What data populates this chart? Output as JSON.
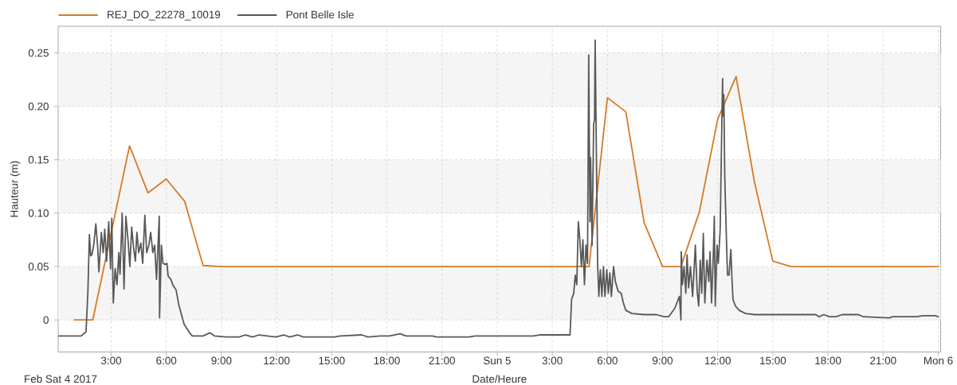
{
  "chart_data": {
    "type": "line",
    "xlabel": "Date/Heure",
    "ylabel": "Hauteur (m)",
    "annotations": [
      "Feb Sat 4 2017"
    ],
    "xlim": [
      "2017-02-04T00:07",
      "2017-02-06T00:08"
    ],
    "xticks": [
      {
        "value": "2017-02-04T03:00",
        "label": "3:00"
      },
      {
        "value": "2017-02-04T06:00",
        "label": "6:00"
      },
      {
        "value": "2017-02-04T09:00",
        "label": "9:00"
      },
      {
        "value": "2017-02-04T12:00",
        "label": "12:00"
      },
      {
        "value": "2017-02-04T15:00",
        "label": "15:00"
      },
      {
        "value": "2017-02-04T18:00",
        "label": "18:00"
      },
      {
        "value": "2017-02-04T21:00",
        "label": "21:00"
      },
      {
        "value": "2017-02-05T00:00",
        "label": "Sun 5"
      },
      {
        "value": "2017-02-05T03:00",
        "label": "3:00"
      },
      {
        "value": "2017-02-05T06:00",
        "label": "6:00"
      },
      {
        "value": "2017-02-05T09:00",
        "label": "9:00"
      },
      {
        "value": "2017-02-05T12:00",
        "label": "12:00"
      },
      {
        "value": "2017-02-05T15:00",
        "label": "15:00"
      },
      {
        "value": "2017-02-05T18:00",
        "label": "18:00"
      },
      {
        "value": "2017-02-05T21:00",
        "label": "21:00"
      },
      {
        "value": "2017-02-06T00:00",
        "label": "Mon 6"
      }
    ],
    "ylim": [
      -0.03,
      0.275
    ],
    "yticks": [
      0,
      0.05,
      {
        "value": 0.1,
        "label": "0.10"
      },
      0.15,
      {
        "value": 0.2,
        "label": "0.20"
      },
      0.25
    ],
    "grid": true,
    "legend": "top left",
    "line_style": "solid",
    "bands": [
      {
        "axis": "y",
        "from": 0,
        "to": 0.05,
        "color": "#f5f5f5"
      },
      {
        "axis": "y",
        "from": 0.1,
        "to": 0.15,
        "color": "#f5f5f5"
      },
      {
        "axis": "y",
        "from": 0.2,
        "to": 0.25,
        "color": "#f5f5f5"
      }
    ],
    "series": [
      {
        "name": "REJ_DO_22278_10019",
        "color": "#d67b25",
        "x": [
          "2017-02-04T01:00",
          "2017-02-04T02:00",
          "2017-02-04T04:00",
          "2017-02-04T05:00",
          "2017-02-04T06:00",
          "2017-02-04T07:00",
          "2017-02-04T08:00",
          "2017-02-04T09:00",
          "2017-02-05T05:00",
          "2017-02-05T06:00",
          "2017-02-05T07:00",
          "2017-02-05T08:00",
          "2017-02-05T09:00",
          "2017-02-05T10:00",
          "2017-02-05T11:00",
          "2017-02-05T12:00",
          "2017-02-05T13:00",
          "2017-02-05T14:00",
          "2017-02-05T15:00",
          "2017-02-05T16:00",
          "2017-02-06T00:00"
        ],
        "values": [
          0,
          0,
          0.163,
          0.119,
          0.132,
          0.111,
          0.051,
          0.05,
          0.05,
          0.208,
          0.195,
          0.091,
          0.05,
          0.05,
          0.101,
          0.188,
          0.228,
          0.129,
          0.055,
          0.05,
          0.05
        ]
      },
      {
        "name": "Pont Belle Isle",
        "color": "#595959",
        "x": [
          "2017-02-04T00:07",
          "2017-02-04T01:22",
          "2017-02-04T01:38",
          "2017-02-04T01:44",
          "2017-02-04T01:49",
          "2017-02-04T01:53",
          "2017-02-04T01:57",
          "2017-02-04T02:03",
          "2017-02-04T02:10",
          "2017-02-04T02:16",
          "2017-02-04T02:20",
          "2017-02-04T02:28",
          "2017-02-04T02:34",
          "2017-02-04T02:39",
          "2017-02-04T02:45",
          "2017-02-04T02:52",
          "2017-02-04T02:58",
          "2017-02-04T03:02",
          "2017-02-04T03:07",
          "2017-02-04T03:13",
          "2017-02-04T03:19",
          "2017-02-04T03:25",
          "2017-02-04T03:29",
          "2017-02-04T03:36",
          "2017-02-04T03:42",
          "2017-02-04T03:48",
          "2017-02-04T03:55",
          "2017-02-04T04:01",
          "2017-02-04T04:07",
          "2017-02-04T04:13",
          "2017-02-04T04:19",
          "2017-02-04T04:24",
          "2017-02-04T04:30",
          "2017-02-04T04:37",
          "2017-02-04T04:43",
          "2017-02-04T04:50",
          "2017-02-04T04:56",
          "2017-02-04T05:03",
          "2017-02-04T05:09",
          "2017-02-04T05:16",
          "2017-02-04T05:22",
          "2017-02-04T05:28",
          "2017-02-04T05:33",
          "2017-02-04T05:37",
          "2017-02-04T05:38",
          "2017-02-04T05:44",
          "2017-02-04T05:49",
          "2017-02-04T05:56",
          "2017-02-04T06:02",
          "2017-02-04T06:06",
          "2017-02-04T06:15",
          "2017-02-04T06:21",
          "2017-02-04T06:32",
          "2017-02-04T06:41",
          "2017-02-04T06:58",
          "2017-02-04T07:16",
          "2017-02-04T07:25",
          "2017-02-04T08:00",
          "2017-02-04T08:22",
          "2017-02-04T08:37",
          "2017-02-04T09:17",
          "2017-02-04T09:58",
          "2017-02-04T10:18",
          "2017-02-04T10:42",
          "2017-02-04T11:02",
          "2017-02-04T11:58",
          "2017-02-04T12:23",
          "2017-02-04T12:43",
          "2017-02-04T13:08",
          "2017-02-04T13:28",
          "2017-02-04T15:08",
          "2017-02-04T15:28",
          "2017-02-04T16:38",
          "2017-02-04T16:58",
          "2017-02-04T17:38",
          "2017-02-04T18:08",
          "2017-02-04T18:43",
          "2017-02-04T19:03",
          "2017-02-04T20:28",
          "2017-02-04T20:43",
          "2017-02-04T22:28",
          "2017-02-04T22:48",
          "2017-02-05T01:58",
          "2017-02-05T02:18",
          "2017-02-05T03:58",
          "2017-02-05T04:03",
          "2017-02-05T04:10",
          "2017-02-05T04:15",
          "2017-02-05T04:20",
          "2017-02-05T04:25",
          "2017-02-05T04:30",
          "2017-02-05T04:35",
          "2017-02-05T04:40",
          "2017-02-05T04:45",
          "2017-02-05T04:50",
          "2017-02-05T04:55",
          "2017-02-05T04:59",
          "2017-02-05T05:03",
          "2017-02-05T05:05",
          "2017-02-05T05:10",
          "2017-02-05T05:15",
          "2017-02-05T05:18",
          "2017-02-05T05:20",
          "2017-02-05T05:24",
          "2017-02-05T05:28",
          "2017-02-05T05:32",
          "2017-02-05T05:37",
          "2017-02-05T05:42",
          "2017-02-05T05:47",
          "2017-02-05T05:52",
          "2017-02-05T05:58",
          "2017-02-05T06:03",
          "2017-02-05T06:08",
          "2017-02-05T06:13",
          "2017-02-05T06:20",
          "2017-02-05T06:26",
          "2017-02-05T06:35",
          "2017-02-05T06:45",
          "2017-02-05T06:52",
          "2017-02-05T07:00",
          "2017-02-05T07:20",
          "2017-02-05T08:00",
          "2017-02-05T08:40",
          "2017-02-05T09:05",
          "2017-02-05T09:20",
          "2017-02-05T09:40",
          "2017-02-05T09:55",
          "2017-02-05T10:00",
          "2017-02-05T10:01",
          "2017-02-05T10:05",
          "2017-02-05T10:10",
          "2017-02-05T10:16",
          "2017-02-05T10:20",
          "2017-02-05T10:25",
          "2017-02-05T10:31",
          "2017-02-05T10:38",
          "2017-02-05T10:43",
          "2017-02-05T10:47",
          "2017-02-05T10:53",
          "2017-02-05T10:58",
          "2017-02-05T11:03",
          "2017-02-05T11:08",
          "2017-02-05T11:13",
          "2017-02-05T11:18",
          "2017-02-05T11:25",
          "2017-02-05T11:31",
          "2017-02-05T11:35",
          "2017-02-05T11:40",
          "2017-02-05T11:46",
          "2017-02-05T11:49",
          "2017-02-05T11:52",
          "2017-02-05T11:58",
          "2017-02-05T12:02",
          "2017-02-05T12:08",
          "2017-02-05T12:13",
          "2017-02-05T12:16",
          "2017-02-05T12:17",
          "2017-02-05T12:20",
          "2017-02-05T12:23",
          "2017-02-05T12:28",
          "2017-02-05T12:32",
          "2017-02-05T12:37",
          "2017-02-05T12:43",
          "2017-02-05T12:46",
          "2017-02-05T12:50",
          "2017-02-05T12:58",
          "2017-02-05T13:10",
          "2017-02-05T13:31",
          "2017-02-05T14:01",
          "2017-02-05T17:01",
          "2017-02-05T17:20",
          "2017-02-05T17:31",
          "2017-02-05T17:46",
          "2017-02-05T18:05",
          "2017-02-05T18:26",
          "2017-02-05T18:46",
          "2017-02-05T19:40",
          "2017-02-05T19:55",
          "2017-02-05T21:20",
          "2017-02-05T21:31",
          "2017-02-05T22:50",
          "2017-02-05T23:10",
          "2017-02-05T23:50",
          "2017-02-06T00:00"
        ],
        "values": [
          -0.015,
          -0.015,
          -0.011,
          0.026,
          0.08,
          0.06,
          0.061,
          0.07,
          0.09,
          0.068,
          0.045,
          0.082,
          0.063,
          0.085,
          0.055,
          0.092,
          0.048,
          0.095,
          0.016,
          0.048,
          0.033,
          0.063,
          0.043,
          0.1,
          0.029,
          0.097,
          0.075,
          0.05,
          0.087,
          0.068,
          0.055,
          0.082,
          0.063,
          0.072,
          0.053,
          0.098,
          0.063,
          0.07,
          0.082,
          0.063,
          0.07,
          0.038,
          0.07,
          0.097,
          0.002,
          0.07,
          0.053,
          0.052,
          0.053,
          0.041,
          0.038,
          0.033,
          0.028,
          0.014,
          -0.004,
          -0.012,
          -0.015,
          -0.015,
          -0.012,
          -0.015,
          -0.016,
          -0.016,
          -0.014,
          -0.016,
          -0.014,
          -0.016,
          -0.014,
          -0.016,
          -0.014,
          -0.016,
          -0.016,
          -0.015,
          -0.014,
          -0.016,
          -0.015,
          -0.015,
          -0.013,
          -0.015,
          -0.015,
          -0.016,
          -0.016,
          -0.015,
          -0.015,
          -0.014,
          -0.014,
          0.019,
          0.025,
          0.042,
          0.033,
          0.092,
          0.075,
          0.05,
          0.075,
          0.033,
          0.07,
          0.053,
          0.248,
          0.092,
          0.152,
          0.07,
          0.183,
          0.188,
          0.262,
          0.155,
          0.053,
          0.022,
          0.047,
          0.022,
          0.05,
          0.022,
          0.047,
          0.025,
          0.044,
          0.022,
          0.05,
          0.036,
          0.027,
          0.025,
          0.016,
          0.009,
          0.006,
          0.005,
          0.005,
          0.003,
          0.003,
          0.011,
          0.022,
          0.0,
          0.064,
          0.033,
          0.05,
          0.025,
          0.061,
          0.03,
          0.05,
          0.022,
          0.047,
          0.07,
          0.027,
          0.013,
          0.056,
          0.025,
          0.081,
          0.016,
          0.056,
          0.036,
          0.064,
          0.016,
          0.064,
          0.097,
          0.013,
          0.07,
          0.053,
          0.084,
          0.174,
          0.226,
          0.191,
          0.211,
          0.135,
          0.081,
          0.042,
          0.042,
          0.066,
          0.042,
          0.019,
          0.013,
          0.009,
          0.006,
          0.005,
          0.005,
          0.005,
          0.003,
          0.005,
          0.003,
          0.003,
          0.005,
          0.005,
          0.003,
          0.002,
          0.003,
          0.003,
          0.004,
          0.004,
          0.003
        ]
      }
    ]
  }
}
